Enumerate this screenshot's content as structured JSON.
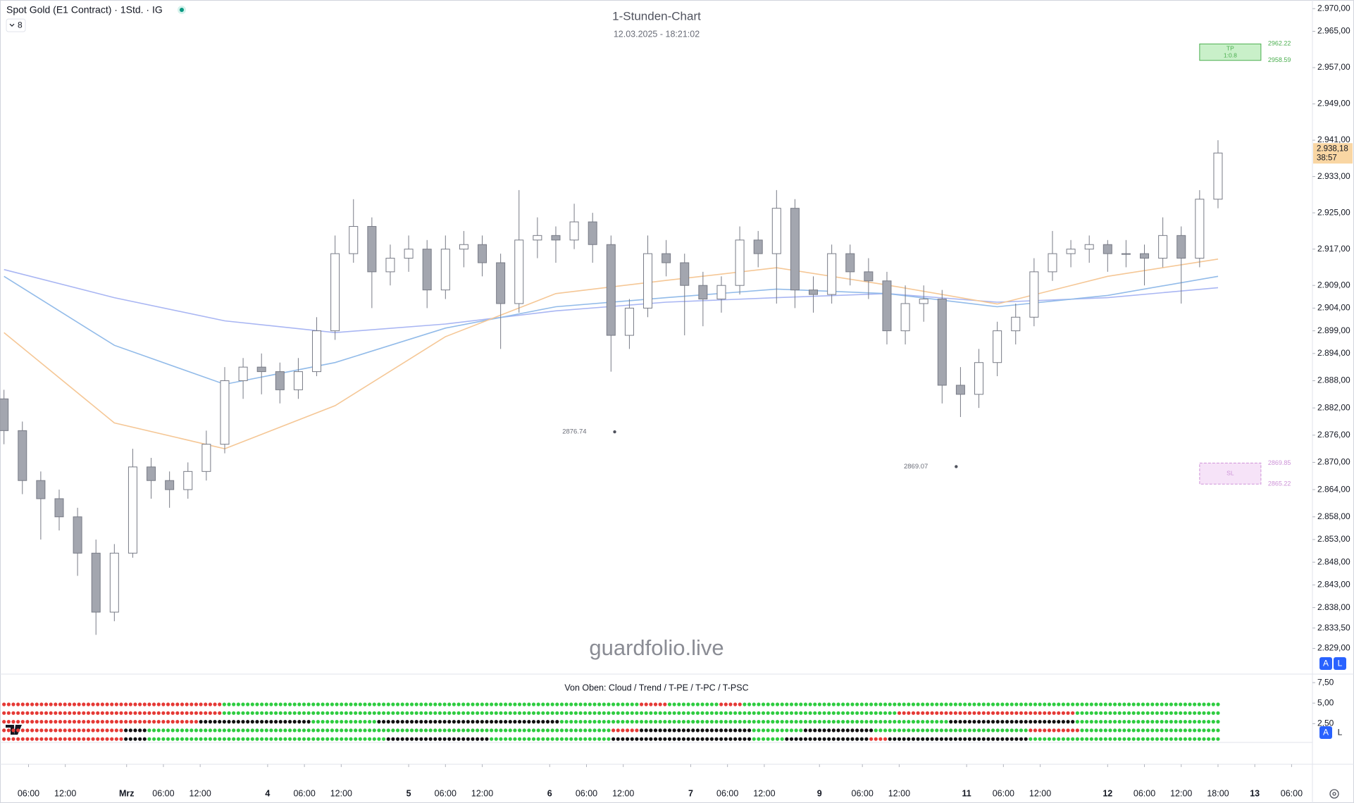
{
  "header": {
    "symbol": "Spot Gold (E1 Contract) · 1Std. · IG",
    "badge": "8"
  },
  "watermark": "guardfolio.live",
  "buttons": [
    "A",
    "L",
    "A",
    "L"
  ],
  "chart_data": [
    {
      "type": "candlestick",
      "title": "1-Stunden-Chart",
      "subtitle": "12.03.2025 - 18:21:02",
      "up_color": "#ffffff",
      "down_color": "#a3a6af",
      "wick_color": "#787b86",
      "xlim": [
        -4.65,
        209.4
      ],
      "ylim": [
        2823.5,
        2971.9
      ],
      "grid": false,
      "x": [
        -4,
        -1,
        2,
        5,
        8,
        11,
        14,
        17,
        20,
        23,
        26,
        29,
        32,
        35,
        38,
        41,
        44,
        47,
        50,
        53,
        56,
        59,
        62,
        65,
        68,
        71,
        74,
        77,
        80,
        83,
        86,
        89,
        92,
        95,
        98,
        101,
        104,
        107,
        110,
        113,
        116,
        119,
        122,
        125,
        128,
        131,
        134,
        137,
        140,
        143,
        146,
        149,
        152,
        155,
        158,
        161,
        164,
        167,
        170,
        173,
        176,
        179,
        182,
        185,
        188,
        191,
        194
      ],
      "candles": [
        [
          2884,
          2886,
          2874,
          2877
        ],
        [
          2877,
          2879,
          2863,
          2866
        ],
        [
          2866,
          2868,
          2853,
          2862
        ],
        [
          2862,
          2864,
          2855,
          2858
        ],
        [
          2858,
          2860,
          2845,
          2850
        ],
        [
          2850,
          2853,
          2832,
          2837
        ],
        [
          2837,
          2852,
          2835,
          2850
        ],
        [
          2850,
          2873,
          2849,
          2869
        ],
        [
          2869,
          2871,
          2862,
          2866
        ],
        [
          2866,
          2868,
          2860,
          2864
        ],
        [
          2864,
          2870,
          2862,
          2868
        ],
        [
          2868,
          2877,
          2866,
          2874
        ],
        [
          2874,
          2891,
          2872,
          2888
        ],
        [
          2888,
          2893,
          2884,
          2891
        ],
        [
          2891,
          2894,
          2885,
          2890
        ],
        [
          2890,
          2892,
          2883,
          2886
        ],
        [
          2886,
          2893,
          2884,
          2890
        ],
        [
          2890,
          2902,
          2889,
          2899
        ],
        [
          2899,
          2920,
          2897,
          2916
        ],
        [
          2916,
          2928,
          2914,
          2922
        ],
        [
          2922,
          2924,
          2904,
          2912
        ],
        [
          2912,
          2918,
          2909,
          2915
        ],
        [
          2915,
          2920,
          2912,
          2917
        ],
        [
          2917,
          2919,
          2904,
          2908
        ],
        [
          2908,
          2920,
          2906,
          2917
        ],
        [
          2917,
          2921,
          2913,
          2918
        ],
        [
          2918,
          2920,
          2911,
          2914
        ],
        [
          2914,
          2916,
          2895,
          2905
        ],
        [
          2905,
          2930,
          2903,
          2919
        ],
        [
          2919,
          2924,
          2915,
          2920
        ],
        [
          2920,
          2922,
          2914,
          2919
        ],
        [
          2919,
          2927,
          2917,
          2923
        ],
        [
          2923,
          2925,
          2914,
          2918
        ],
        [
          2918,
          2920,
          2890,
          2898
        ],
        [
          2898,
          2906,
          2895,
          2904
        ],
        [
          2904,
          2920,
          2902,
          2916
        ],
        [
          2916,
          2919,
          2911,
          2914
        ],
        [
          2914,
          2916,
          2898,
          2909
        ],
        [
          2909,
          2912,
          2900,
          2906
        ],
        [
          2906,
          2911,
          2903,
          2909
        ],
        [
          2909,
          2922,
          2907,
          2919
        ],
        [
          2919,
          2921,
          2913,
          2916
        ],
        [
          2916,
          2930,
          2905,
          2926
        ],
        [
          2926,
          2928,
          2904,
          2908
        ],
        [
          2908,
          2911,
          2903,
          2907
        ],
        [
          2907,
          2918,
          2905,
          2916
        ],
        [
          2916,
          2918,
          2909,
          2912
        ],
        [
          2912,
          2915,
          2906,
          2910
        ],
        [
          2910,
          2912,
          2896,
          2899
        ],
        [
          2899,
          2909,
          2896,
          2905
        ],
        [
          2905,
          2909,
          2901,
          2906
        ],
        [
          2906,
          2908,
          2883,
          2887
        ],
        [
          2887,
          2891,
          2880,
          2885
        ],
        [
          2885,
          2895,
          2882,
          2892
        ],
        [
          2892,
          2901,
          2889,
          2899
        ],
        [
          2899,
          2905,
          2896,
          2902
        ],
        [
          2902,
          2915,
          2900,
          2912
        ],
        [
          2912,
          2921,
          2910,
          2916
        ],
        [
          2916,
          2919,
          2913,
          2917
        ],
        [
          2917,
          2920,
          2914,
          2918
        ],
        [
          2918,
          2919,
          2912,
          2916
        ],
        [
          2916,
          2919,
          2913,
          2916
        ],
        [
          2916,
          2918,
          2909,
          2915
        ],
        [
          2915,
          2924,
          2913,
          2920
        ],
        [
          2920,
          2922,
          2905,
          2915
        ],
        [
          2915,
          2930,
          2913,
          2928
        ],
        [
          2928,
          2941,
          2926,
          2938.18
        ]
      ],
      "series": [
        {
          "color": "#a9b6f3",
          "x": [
            -4,
            14,
            32,
            50,
            68,
            86,
            104,
            122,
            140,
            158,
            176,
            194
          ],
          "values": [
            2912.5,
            2906.3,
            2901.2,
            2898.6,
            2900.5,
            2903.4,
            2905.3,
            2906.3,
            2907.2,
            2905.3,
            2906.3,
            2908.5
          ]
        },
        {
          "color": "#92bbe9",
          "x": [
            -4,
            14,
            32,
            50,
            68,
            86,
            104,
            122,
            140,
            158,
            176,
            194
          ],
          "values": [
            2911.0,
            2895.8,
            2887.2,
            2892.0,
            2899.6,
            2904.3,
            2906.3,
            2908.2,
            2907.2,
            2904.3,
            2906.8,
            2911.0
          ]
        },
        {
          "color": "#f5c796",
          "x": [
            -4,
            14,
            32,
            50,
            68,
            86,
            104,
            122,
            140,
            158,
            176,
            194
          ],
          "values": [
            2898.6,
            2878.7,
            2873.0,
            2882.5,
            2897.7,
            2907.2,
            2910.1,
            2912.9,
            2909.1,
            2904.9,
            2911.0,
            2914.8
          ]
        }
      ],
      "yticks": [
        {
          "value": 2970,
          "label": "2.970,00"
        },
        {
          "value": 2965,
          "label": "2.965,00"
        },
        {
          "value": 2957,
          "label": "2.957,00"
        },
        {
          "value": 2949,
          "label": "2.949,00"
        },
        {
          "value": 2941,
          "label": "2.941,00"
        },
        {
          "value": 2933,
          "label": "2.933,00"
        },
        {
          "value": 2925,
          "label": "2.925,00"
        },
        {
          "value": 2917,
          "label": "2.917,00"
        },
        {
          "value": 2909,
          "label": "2.909,00"
        },
        {
          "value": 2904,
          "label": "2.904,00"
        },
        {
          "value": 2899,
          "label": "2.899,00"
        },
        {
          "value": 2894,
          "label": "2.894,00"
        },
        {
          "value": 2888,
          "label": "2.888,00"
        },
        {
          "value": 2882,
          "label": "2.882,00"
        },
        {
          "value": 2876,
          "label": "2.876,00"
        },
        {
          "value": 2870,
          "label": "2.870,00"
        },
        {
          "value": 2864,
          "label": "2.864,00"
        },
        {
          "value": 2858,
          "label": "2.858,00"
        },
        {
          "value": 2853,
          "label": "2.853,00"
        },
        {
          "value": 2848,
          "label": "2.848,00"
        },
        {
          "value": 2843,
          "label": "2.843,00"
        },
        {
          "value": 2838,
          "label": "2.838,00"
        },
        {
          "value": 2833.5,
          "label": "2.833,50"
        },
        {
          "value": 2829,
          "label": "2.829,00"
        }
      ],
      "xticks": [
        {
          "value": 0,
          "label": "06:00"
        },
        {
          "value": 6,
          "label": "12:00"
        },
        {
          "value": 16,
          "label": "Mrz"
        },
        {
          "value": 22,
          "label": "06:00"
        },
        {
          "value": 28,
          "label": "12:00"
        },
        {
          "value": 39,
          "label": "4"
        },
        {
          "value": 45,
          "label": "06:00"
        },
        {
          "value": 51,
          "label": "12:00"
        },
        {
          "value": 62,
          "label": "5"
        },
        {
          "value": 68,
          "label": "06:00"
        },
        {
          "value": 74,
          "label": "12:00"
        },
        {
          "value": 85,
          "label": "6"
        },
        {
          "value": 91,
          "label": "06:00"
        },
        {
          "value": 97,
          "label": "12:00"
        },
        {
          "value": 108,
          "label": "7"
        },
        {
          "value": 114,
          "label": "06:00"
        },
        {
          "value": 120,
          "label": "12:00"
        },
        {
          "value": 129,
          "label": "9"
        },
        {
          "value": 136,
          "label": "06:00"
        },
        {
          "value": 142,
          "label": "12:00"
        },
        {
          "value": 153,
          "label": "11"
        },
        {
          "value": 159,
          "label": "06:00"
        },
        {
          "value": 165,
          "label": "12:00"
        },
        {
          "value": 176,
          "label": "12"
        },
        {
          "value": 182,
          "label": "06:00"
        },
        {
          "value": 188,
          "label": "12:00"
        },
        {
          "value": 194,
          "label": "18:00"
        },
        {
          "value": 200,
          "label": "13"
        },
        {
          "value": 206,
          "label": "06:00"
        }
      ],
      "last_price": {
        "value": 2938.18,
        "label": "2.938,18",
        "countdown": "38:57",
        "color": "#f9d6a3"
      },
      "annotations": [
        {
          "text": "2876.74",
          "x": 95.6,
          "y": 2876.74
        },
        {
          "text": "2869.07",
          "x": 151.3,
          "y": 2869.07
        }
      ],
      "boxes": [
        {
          "text": "TP",
          "ratio": "1:0.8",
          "x": [
            191,
            201
          ],
          "top": 2962.22,
          "bottom": 2958.59,
          "top_label": "2962.22",
          "bottom_label": "2958.59",
          "color": "#4caf50",
          "fill": "#c9f0c9"
        },
        {
          "text": "SL",
          "x": [
            191,
            201
          ],
          "top": 2869.85,
          "bottom": 2865.22,
          "top_label": "2869.85",
          "bottom_label": "2865.22",
          "color": "#ce93d8",
          "fill": "#f6e3f8"
        }
      ]
    },
    {
      "type": "dots",
      "title": "Von Oben: Cloud / Trend / T-PE / T-PC / T-PSC",
      "ylim": [
        0.21,
        8.54
      ],
      "yticks": [
        {
          "value": 7.5,
          "label": "7,50"
        },
        {
          "value": 5,
          "label": "5,00"
        },
        {
          "value": 2.5,
          "label": "2,50"
        }
      ],
      "rows": [
        [
          {
            "color": "#e53935",
            "count": 47
          },
          {
            "color": "#2ecc40",
            "count": 89
          },
          {
            "color": "#e53935",
            "count": 6
          },
          {
            "color": "#2ecc40",
            "count": 11
          },
          {
            "color": "#e53935",
            "count": 5
          },
          {
            "color": "#2ecc40",
            "count": 102
          }
        ],
        [
          {
            "color": "#e53935",
            "count": 47
          },
          {
            "color": "#2ecc40",
            "count": 144
          },
          {
            "color": "#e53935",
            "count": 38
          },
          {
            "color": "#2ecc40",
            "count": 31
          }
        ],
        [
          {
            "color": "#e53935",
            "count": 42
          },
          {
            "color": "#111111",
            "count": 24
          },
          {
            "color": "#2ecc40",
            "count": 14
          },
          {
            "color": "#111111",
            "count": 39
          },
          {
            "color": "#2ecc40",
            "count": 83
          },
          {
            "color": "#111111",
            "count": 27
          },
          {
            "color": "#2ecc40",
            "count": 31
          }
        ],
        [
          {
            "color": "#e53935",
            "count": 26
          },
          {
            "color": "#111111",
            "count": 5
          },
          {
            "color": "#2ecc40",
            "count": 99
          },
          {
            "color": "#e53935",
            "count": 6
          },
          {
            "color": "#111111",
            "count": 24
          },
          {
            "color": "#2ecc40",
            "count": 11
          },
          {
            "color": "#111111",
            "count": 15
          },
          {
            "color": "#2ecc40",
            "count": 33
          },
          {
            "color": "#e53935",
            "count": 11
          },
          {
            "color": "#2ecc40",
            "count": 30
          }
        ],
        [
          {
            "color": "#e53935",
            "count": 26
          },
          {
            "color": "#111111",
            "count": 5
          },
          {
            "color": "#2ecc40",
            "count": 51
          },
          {
            "color": "#111111",
            "count": 22
          },
          {
            "color": "#2ecc40",
            "count": 26
          },
          {
            "color": "#111111",
            "count": 30
          },
          {
            "color": "#2ecc40",
            "count": 7
          },
          {
            "color": "#111111",
            "count": 18
          },
          {
            "color": "#e53935",
            "count": 4
          },
          {
            "color": "#111111",
            "count": 30
          },
          {
            "color": "#2ecc40",
            "count": 41
          }
        ]
      ]
    }
  ]
}
